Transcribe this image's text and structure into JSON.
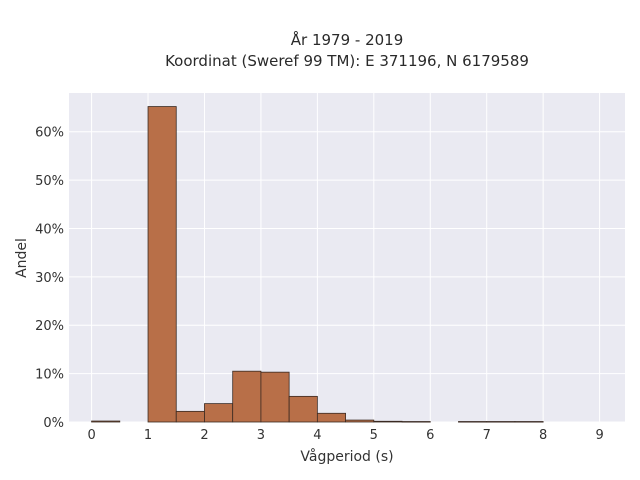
{
  "chart_data": {
    "type": "bar",
    "title_line1": "År 1979 - 2019",
    "title_line2": "Koordinat (Sweref 99 TM): E 371196, N 6179589",
    "xlabel": "Vågperiod (s)",
    "ylabel": "Andel",
    "xlim": [
      -0.4,
      9.45
    ],
    "ylim": [
      0,
      68
    ],
    "x_ticks": [
      0,
      1,
      2,
      3,
      4,
      5,
      6,
      7,
      8,
      9
    ],
    "y_ticks": [
      0,
      10,
      20,
      30,
      40,
      50,
      60
    ],
    "y_tick_labels": [
      "0%",
      "10%",
      "20%",
      "30%",
      "40%",
      "50%",
      "60%"
    ],
    "bin_width": 0.5,
    "bins": [
      {
        "start": 0.0,
        "value": 0.2
      },
      {
        "start": 1.0,
        "value": 65.2
      },
      {
        "start": 1.5,
        "value": 2.2
      },
      {
        "start": 2.0,
        "value": 3.8
      },
      {
        "start": 2.5,
        "value": 10.5
      },
      {
        "start": 3.0,
        "value": 10.3
      },
      {
        "start": 3.5,
        "value": 5.3
      },
      {
        "start": 4.0,
        "value": 1.8
      },
      {
        "start": 4.5,
        "value": 0.4
      },
      {
        "start": 5.0,
        "value": 0.15
      },
      {
        "start": 5.5,
        "value": 0.1
      },
      {
        "start": 6.5,
        "value": 0.1
      },
      {
        "start": 7.0,
        "value": 0.1
      },
      {
        "start": 7.5,
        "value": 0.1
      }
    ],
    "bar_color": "#b86f48",
    "bar_edge_color": "#3a2a22",
    "plot_background": "#eaeaf2",
    "grid": true,
    "grid_color": "#ffffff"
  }
}
